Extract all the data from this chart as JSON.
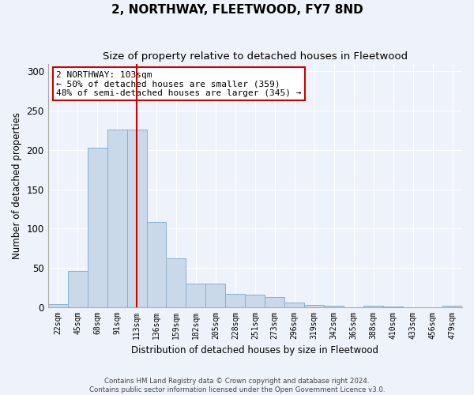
{
  "title": "2, NORTHWAY, FLEETWOOD, FY7 8ND",
  "subtitle": "Size of property relative to detached houses in Fleetwood",
  "xlabel": "Distribution of detached houses by size in Fleetwood",
  "ylabel": "Number of detached properties",
  "bar_values": [
    4,
    46,
    203,
    226,
    226,
    108,
    62,
    30,
    30,
    17,
    16,
    13,
    6,
    3,
    2,
    0,
    2,
    1,
    0,
    0,
    2
  ],
  "bar_labels": [
    "22sqm",
    "45sqm",
    "68sqm",
    "91sqm",
    "113sqm",
    "136sqm",
    "159sqm",
    "182sqm",
    "205sqm",
    "228sqm",
    "251sqm",
    "273sqm",
    "296sqm",
    "319sqm",
    "342sqm",
    "365sqm",
    "388sqm",
    "410sqm",
    "433sqm",
    "456sqm",
    "479sqm"
  ],
  "bar_color": "#c9d9ea",
  "bar_edge_color": "#8ab0cc",
  "background_color": "#eef2fa",
  "grid_color": "#ffffff",
  "vline_x": 4.0,
  "vline_color": "#cc0000",
  "annotation_text": "2 NORTHWAY: 103sqm\n← 50% of detached houses are smaller (359)\n48% of semi-detached houses are larger (345) →",
  "annotation_box_color": "#ffffff",
  "annotation_edge_color": "#cc0000",
  "footnote": "Contains HM Land Registry data © Crown copyright and database right 2024.\nContains public sector information licensed under the Open Government Licence v3.0.",
  "ylim": [
    0,
    310
  ],
  "yticks": [
    0,
    50,
    100,
    150,
    200,
    250,
    300
  ],
  "figsize": [
    6.0,
    5.0
  ],
  "dpi": 100
}
